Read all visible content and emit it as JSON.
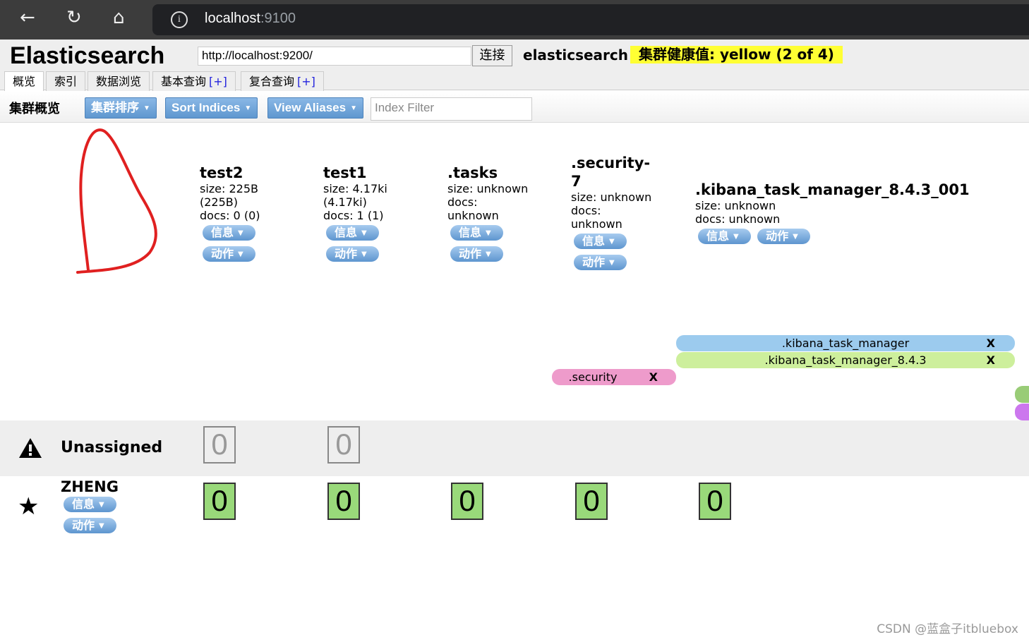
{
  "browser": {
    "host": "localhost",
    "port": ":9100"
  },
  "header": {
    "title": "Elasticsearch",
    "cluster_url": "http://localhost:9200/",
    "connect": "连接",
    "cluster_name": "elasticsearch",
    "health": "集群健康值: yellow (2 of 4)",
    "health_color": "#ffff33"
  },
  "tabs": [
    {
      "label": "概览"
    },
    {
      "label": "索引"
    },
    {
      "label": "数据浏览"
    },
    {
      "label": "基本查询",
      "plus": "[+]"
    },
    {
      "label": "复合查询",
      "plus": "[+]"
    }
  ],
  "toolbar": {
    "label": "集群概览",
    "sort_cluster": "集群排序",
    "sort_indices": "Sort Indices",
    "view_aliases": "View Aliases",
    "filter_placeholder": "Index Filter"
  },
  "buttons": {
    "info": "信息",
    "action": "动作"
  },
  "indices": [
    {
      "name": "test2",
      "l1": "size: 225B",
      "l2": "(225B)",
      "l3": "docs: 0 (0)"
    },
    {
      "name": "test1",
      "l1": "size: 4.17ki",
      "l2": "(4.17ki)",
      "l3": "docs: 1 (1)"
    },
    {
      "name": ".tasks",
      "l1": "size: unknown",
      "l2": "docs:",
      "l3": "unknown"
    },
    {
      "name": ".security-7",
      "l1": "size: unknown",
      "l2": "docs:",
      "l3": "unknown"
    },
    {
      "name": ".kibana_task_manager_8.4.3_001",
      "l1": "size: unknown",
      "l2": "docs: unknown",
      "l3": ""
    }
  ],
  "aliases": [
    {
      "name": ".kibana_task_manager",
      "remove": "X",
      "color": "#9ccbee"
    },
    {
      "name": ".kibana_task_manager_8.4.3",
      "remove": "X",
      "color": "#cdef9c"
    },
    {
      "name": ".security",
      "remove": "X",
      "color": "#ee9bcb"
    }
  ],
  "unassigned": {
    "label": "Unassigned",
    "shards": [
      "0",
      "0"
    ]
  },
  "node": {
    "name": "ZHENG",
    "shards": [
      "0",
      "0",
      "0",
      "0",
      "0"
    ]
  },
  "watermark": "CSDN @蓝盒子itbluebox"
}
